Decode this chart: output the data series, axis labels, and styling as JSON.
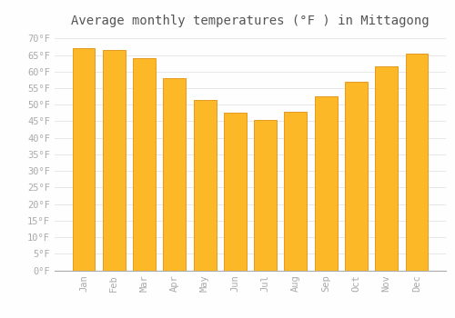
{
  "title": "Average monthly temperatures (°F ) in Mittagong",
  "months": [
    "Jan",
    "Feb",
    "Mar",
    "Apr",
    "May",
    "Jun",
    "Jul",
    "Aug",
    "Sep",
    "Oct",
    "Nov",
    "Dec"
  ],
  "values": [
    67.0,
    66.5,
    64.0,
    58.0,
    51.5,
    47.5,
    45.5,
    48.0,
    52.5,
    57.0,
    61.5,
    65.5
  ],
  "bar_color": "#FDB827",
  "bar_edge_color": "#E09010",
  "background_color": "#FEFEFE",
  "grid_color": "#DDDDDD",
  "ylim": [
    0,
    72
  ],
  "yticks": [
    0,
    5,
    10,
    15,
    20,
    25,
    30,
    35,
    40,
    45,
    50,
    55,
    60,
    65,
    70
  ],
  "title_fontsize": 10,
  "tick_fontsize": 7.5,
  "tick_font_color": "#AAAAAA",
  "title_color": "#555555"
}
